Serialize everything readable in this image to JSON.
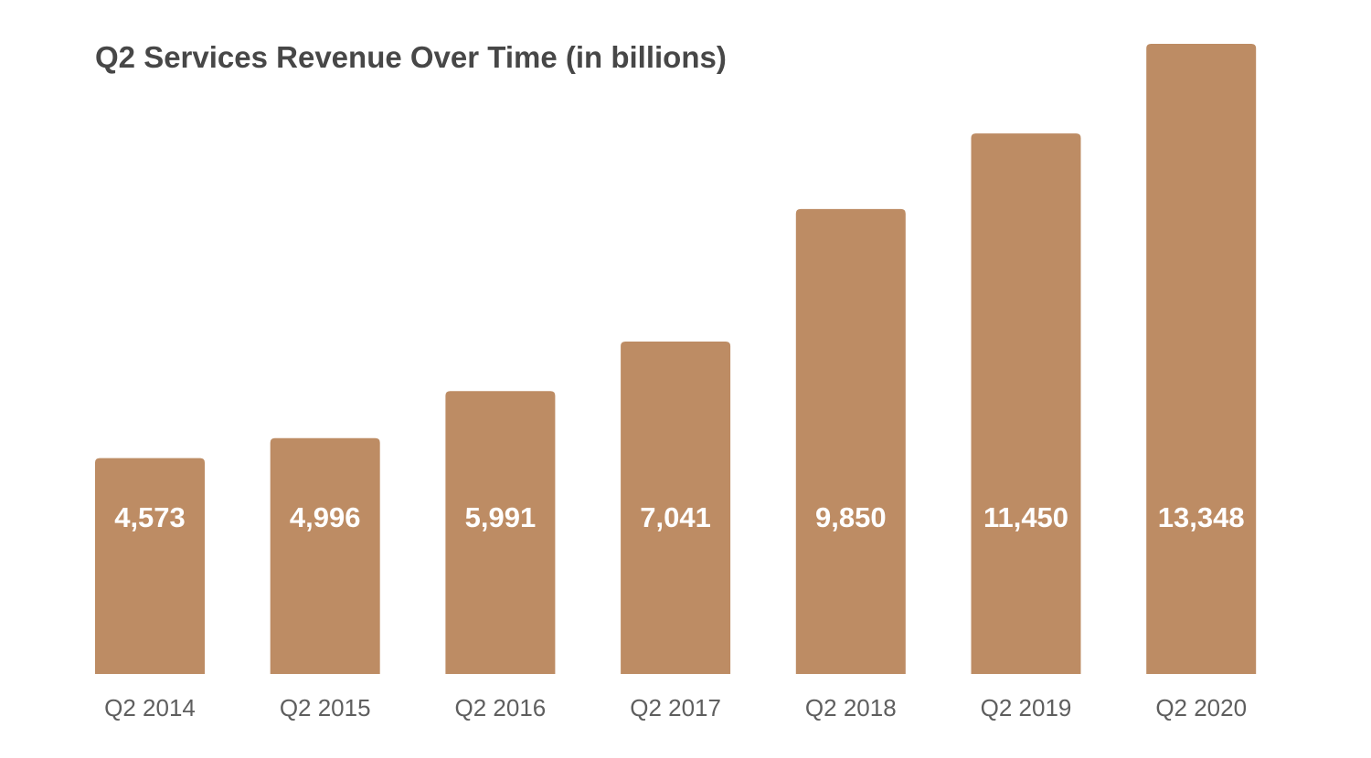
{
  "chart_data": {
    "type": "bar",
    "title": "Q2 Services Revenue Over Time (in billions)",
    "categories": [
      "Q2 2014",
      "Q2 2015",
      "Q2 2016",
      "Q2 2017",
      "Q2 2018",
      "Q2 2019",
      "Q2 2020"
    ],
    "values": [
      4573,
      4996,
      5991,
      7041,
      9850,
      11450,
      13348
    ],
    "value_labels": [
      "4,573",
      "4,996",
      "5,991",
      "7,041",
      "9,850",
      "11,450",
      "13,348"
    ],
    "xlabel": "",
    "ylabel": "",
    "ylim": [
      0,
      13348
    ],
    "grid": false,
    "legend": "none",
    "colors": {
      "bar": "#bd8c64",
      "title": "#474747",
      "value_label": "#ffffff",
      "category_label": "#5e5e5e"
    }
  }
}
